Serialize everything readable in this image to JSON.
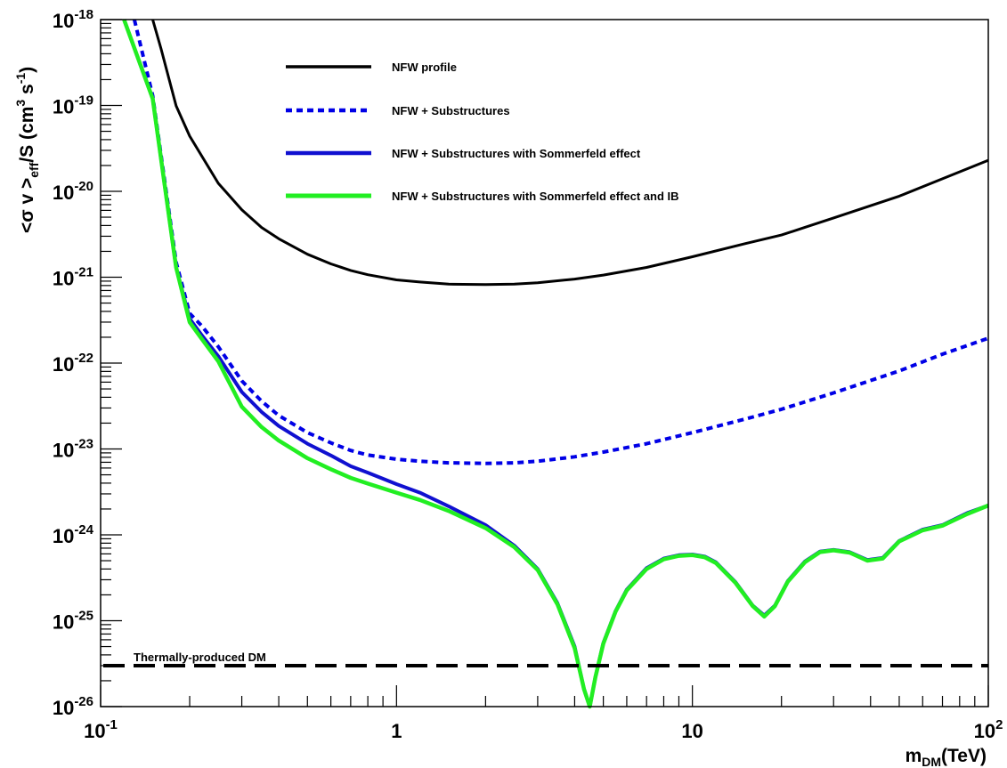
{
  "chart_data": {
    "type": "line",
    "xlabel": {
      "main": "m",
      "sub": "DM",
      "rest": "(TeV)"
    },
    "ylabel": {
      "p1": "<σ v >",
      "sub": "eff",
      "p2": "/S (cm",
      "sup1": "3",
      "p3": " s",
      "sup2": "-1",
      "p4": ")"
    },
    "x_scale": "log",
    "y_scale": "log",
    "xlim": [
      0.1,
      100
    ],
    "ylim": [
      1e-26,
      1e-18
    ],
    "x_ticks": [
      {
        "value": 0.1,
        "base": "10",
        "exp": "-1"
      },
      {
        "value": 1,
        "base": "1",
        "exp": ""
      },
      {
        "value": 10,
        "base": "10",
        "exp": ""
      },
      {
        "value": 100,
        "base": "10",
        "exp": "2"
      }
    ],
    "y_ticks": [
      {
        "value": 1e-26,
        "base": "10",
        "exp": "-26"
      },
      {
        "value": 1e-25,
        "base": "10",
        "exp": "-25"
      },
      {
        "value": 1e-24,
        "base": "10",
        "exp": "-24"
      },
      {
        "value": 1e-23,
        "base": "10",
        "exp": "-23"
      },
      {
        "value": 1e-22,
        "base": "10",
        "exp": "-22"
      },
      {
        "value": 1e-21,
        "base": "10",
        "exp": "-21"
      },
      {
        "value": 1e-20,
        "base": "10",
        "exp": "-20"
      },
      {
        "value": 1e-19,
        "base": "10",
        "exp": "-19"
      },
      {
        "value": 1e-18,
        "base": "10",
        "exp": "-18"
      }
    ],
    "legend_position": "top-center",
    "grid": false,
    "series": [
      {
        "name": "NFW profile",
        "color": "#000000",
        "style": "solid",
        "x": [
          0.15,
          0.16,
          0.18,
          0.2,
          0.25,
          0.3,
          0.35,
          0.4,
          0.5,
          0.6,
          0.7,
          0.8,
          1.0,
          1.2,
          1.5,
          2.0,
          2.5,
          3.0,
          4.0,
          5.0,
          7.0,
          10.0,
          15.0,
          20.0,
          30.0,
          50.0,
          70.0,
          100.0
        ],
        "y": [
          1e-18,
          4.6e-19,
          9.9e-20,
          4.4e-20,
          1.24e-20,
          6.1e-21,
          3.8e-21,
          2.8e-21,
          1.85e-21,
          1.43e-21,
          1.2e-21,
          1.07e-21,
          9.3e-22,
          8.8e-22,
          8.3e-22,
          8.2e-22,
          8.3e-22,
          8.6e-22,
          9.5e-22,
          1.06e-21,
          1.3e-21,
          1.73e-21,
          2.45e-21,
          3.1e-21,
          4.9e-21,
          8.8e-21,
          1.4e-20,
          2.3e-20
        ]
      },
      {
        "name": "NFW + Substructures",
        "color": "#0000e6",
        "style": "dotted",
        "x": [
          0.13,
          0.15,
          0.18,
          0.2,
          0.22,
          0.25,
          0.3,
          0.35,
          0.4,
          0.5,
          0.6,
          0.7,
          0.8,
          1.0,
          1.2,
          1.5,
          2.0,
          2.5,
          3.0,
          4.0,
          5.0,
          7.0,
          10.0,
          15.0,
          20.0,
          30.0,
          50.0,
          70.0,
          100.0
        ],
        "y": [
          1e-18,
          1.3e-19,
          1.5e-21,
          3.8e-22,
          2.7e-22,
          1.55e-22,
          6.2e-23,
          3.6e-23,
          2.45e-23,
          1.55e-23,
          1.18e-23,
          9.6e-24,
          8.5e-24,
          7.6e-24,
          7.2e-24,
          6.9e-24,
          6.8e-24,
          6.9e-24,
          7.2e-24,
          8.1e-24,
          9.2e-24,
          1.15e-23,
          1.55e-23,
          2.22e-23,
          2.9e-23,
          4.5e-23,
          8.1e-23,
          1.27e-22,
          1.95e-22
        ]
      },
      {
        "name": "NFW + Substructures with Sommerfeld effect",
        "color": "#1010d0",
        "style": "solid",
        "x": [
          0.12,
          0.15,
          0.18,
          0.2,
          0.22,
          0.25,
          0.3,
          0.35,
          0.4,
          0.5,
          0.6,
          0.7,
          0.8,
          1.0,
          1.2,
          1.5,
          2.0,
          2.5,
          3.0,
          3.5,
          4.0,
          4.3,
          4.5,
          4.7,
          5.0,
          5.5,
          6.0,
          7.0,
          8.0,
          9.0,
          10.0,
          11.0,
          12.0,
          14.0,
          16.0,
          17.5,
          19.0,
          21.0,
          24.0,
          27.0,
          30.0,
          34.0,
          39.0,
          44.0,
          50.0,
          60.0,
          70.0,
          85.0,
          100.0
        ],
        "y": [
          1e-18,
          1.2e-19,
          1.3e-21,
          3.3e-22,
          2.1e-22,
          1.2e-22,
          4.6e-23,
          2.7e-23,
          1.85e-23,
          1.15e-23,
          8.4e-24,
          6.3e-24,
          5.3e-24,
          3.9e-24,
          3.1e-24,
          2.15e-24,
          1.3e-24,
          7.5e-25,
          4e-25,
          1.6e-25,
          5e-26,
          1.6e-26,
          1e-26,
          2.2e-26,
          5.5e-26,
          1.3e-25,
          2.3e-25,
          4.1e-25,
          5.3e-25,
          5.8e-25,
          5.9e-25,
          5.6e-25,
          4.8e-25,
          2.8e-25,
          1.5e-25,
          1.15e-25,
          1.5e-25,
          2.9e-25,
          4.9e-25,
          6.4e-25,
          6.7e-25,
          6.3e-25,
          5.1e-25,
          5.4e-25,
          8.5e-25,
          1.15e-24,
          1.3e-24,
          1.8e-24,
          2.2e-24
        ]
      },
      {
        "name": "NFW + Substructures with Sommerfeld effect and IB",
        "color": "#22ee22",
        "style": "solid",
        "x": [
          0.12,
          0.15,
          0.18,
          0.2,
          0.22,
          0.25,
          0.3,
          0.35,
          0.4,
          0.5,
          0.6,
          0.7,
          0.8,
          1.0,
          1.2,
          1.5,
          2.0,
          2.5,
          3.0,
          3.5,
          4.0,
          4.3,
          4.5,
          4.7,
          5.0,
          5.5,
          6.0,
          7.0,
          8.0,
          9.0,
          10.0,
          11.0,
          12.0,
          14.0,
          16.0,
          17.5,
          19.0,
          21.0,
          24.0,
          27.0,
          30.0,
          34.0,
          39.0,
          44.0,
          50.0,
          60.0,
          70.0,
          85.0,
          100.0
        ],
        "y": [
          1e-18,
          1.2e-19,
          1.3e-21,
          3e-22,
          1.9e-22,
          1.05e-22,
          3.1e-23,
          1.8e-23,
          1.25e-23,
          7.8e-24,
          5.8e-24,
          4.6e-24,
          3.95e-24,
          3.1e-24,
          2.55e-24,
          1.9e-24,
          1.2e-24,
          7.2e-25,
          3.9e-25,
          1.55e-25,
          4.8e-26,
          1.6e-26,
          1e-26,
          2.2e-26,
          5.4e-26,
          1.28e-25,
          2.25e-25,
          4e-25,
          5.2e-25,
          5.7e-25,
          5.8e-25,
          5.5e-25,
          4.7e-25,
          2.75e-25,
          1.48e-25,
          1.12e-25,
          1.48e-25,
          2.85e-25,
          4.8e-25,
          6.3e-25,
          6.6e-25,
          6.2e-25,
          5e-25,
          5.3e-25,
          8.4e-25,
          1.13e-24,
          1.28e-24,
          1.75e-24,
          2.2e-24
        ]
      }
    ],
    "reference_line": {
      "label": "Thermally-produced DM",
      "y": 3e-26,
      "color": "#000000",
      "style": "dashed"
    }
  }
}
